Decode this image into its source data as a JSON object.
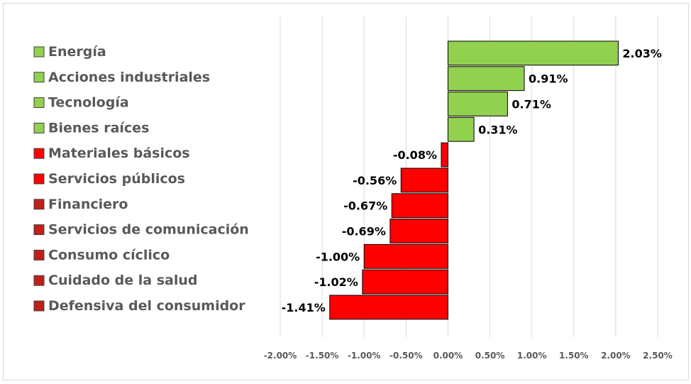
{
  "chart_data": {
    "type": "bar",
    "orientation": "horizontal",
    "categories": [
      "Energía",
      "Acciones industriales",
      "Tecnología",
      "Bienes raíces",
      "Materiales básicos",
      "Servicios públicos",
      "Financiero",
      "Servicios de comunicación",
      "Consumo cíclico",
      "Cuidado de la salud",
      "Defensiva del consumidor"
    ],
    "values": [
      2.03,
      0.91,
      0.71,
      0.31,
      -0.08,
      -0.56,
      -0.67,
      -0.69,
      -1.0,
      -1.02,
      -1.41
    ],
    "value_labels": [
      "2.03%",
      "0.91%",
      "0.71%",
      "0.31%",
      "-0.08%",
      "-0.56%",
      "-0.67%",
      "-0.69%",
      "-1.00%",
      "-1.02%",
      "-1.41%"
    ],
    "xlim": [
      -2.0,
      2.5
    ],
    "xticks": [
      -2.0,
      -1.5,
      -1.0,
      -0.5,
      0.0,
      0.5,
      1.0,
      1.5,
      2.0,
      2.5
    ],
    "xtick_labels": [
      "-2.00%",
      "-1.50%",
      "-1.00%",
      "-0.50%",
      "0.00%",
      "0.50%",
      "1.00%",
      "1.50%",
      "2.00%",
      "2.50%"
    ],
    "title": "",
    "xlabel": "",
    "ylabel": "",
    "grid": "vertical",
    "legend": "left",
    "colors": {
      "positive": "#92d050",
      "negative": "#ff0000",
      "negative_marker": "#c0201a",
      "bar_border": "#000000",
      "grid": "#d9d9d9",
      "label_text": "#595959"
    }
  }
}
